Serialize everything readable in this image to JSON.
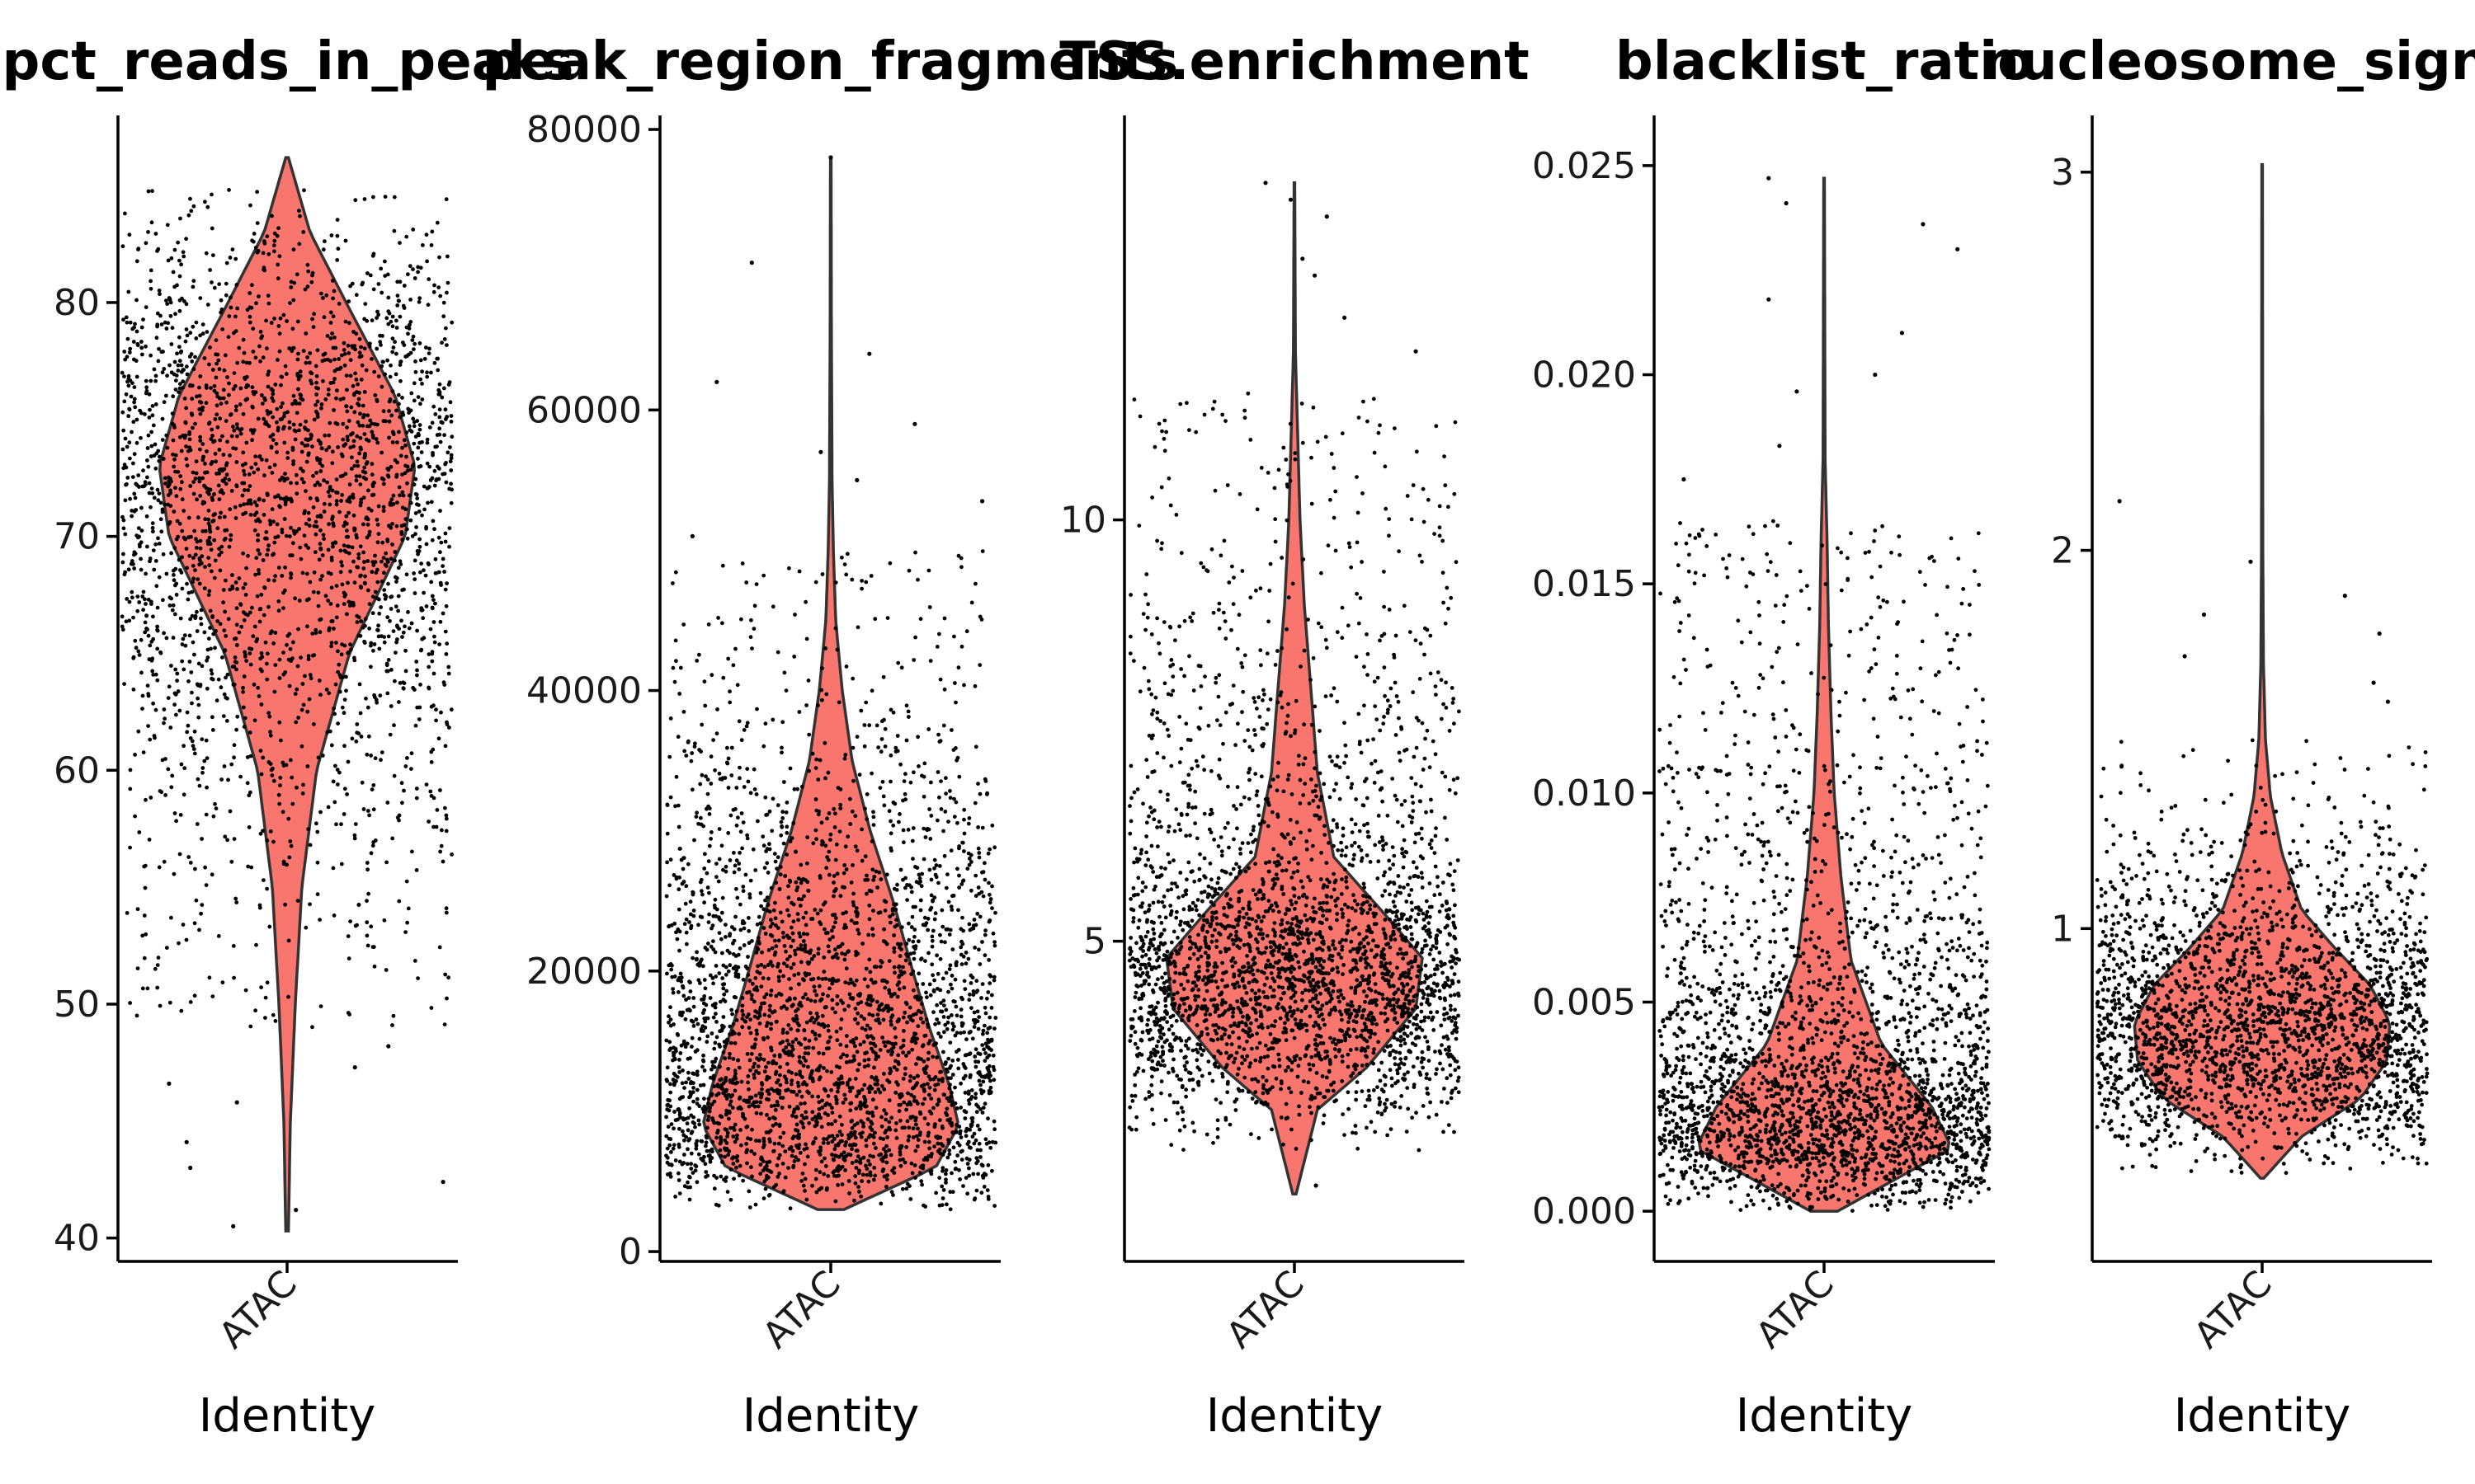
{
  "chart_data": [
    {
      "type": "violin",
      "title": "pct_reads_in_peaks",
      "xlabel": "Identity",
      "categories": [
        "ATAC"
      ],
      "ylim": [
        39,
        88
      ],
      "yticks": [
        40,
        50,
        60,
        70,
        80
      ],
      "fill": "#F8766D",
      "range": [
        40.3,
        86.2
      ],
      "density": [
        [
          40.3,
          0.004
        ],
        [
          45,
          0.01
        ],
        [
          50,
          0.025
        ],
        [
          55,
          0.045
        ],
        [
          60,
          0.09
        ],
        [
          65,
          0.19
        ],
        [
          70,
          0.36
        ],
        [
          73,
          0.39
        ],
        [
          76,
          0.33
        ],
        [
          80,
          0.18
        ],
        [
          83,
          0.07
        ],
        [
          86.2,
          0.004
        ]
      ],
      "n_points": 2600,
      "jitter_ys": [
        49,
        85
      ],
      "outliers": [
        40.5,
        41.2,
        42.4,
        43.0,
        44.1,
        45.8,
        46.6,
        47.3,
        48.2
      ]
    },
    {
      "type": "violin",
      "title": "peak_region_fragments",
      "xlabel": "Identity",
      "categories": [
        "ATAC"
      ],
      "ylim": [
        -700,
        81000
      ],
      "yticks": [
        0,
        20000,
        40000,
        60000,
        80000
      ],
      "fill": "#F8766D",
      "range": [
        3000,
        78000
      ],
      "density": [
        [
          3000,
          0.04
        ],
        [
          6000,
          0.32
        ],
        [
          9000,
          0.39
        ],
        [
          12000,
          0.36
        ],
        [
          16000,
          0.3
        ],
        [
          20000,
          0.25
        ],
        [
          25000,
          0.19
        ],
        [
          30000,
          0.12
        ],
        [
          35000,
          0.065
        ],
        [
          40000,
          0.035
        ],
        [
          45000,
          0.015
        ],
        [
          50000,
          0.008
        ],
        [
          55000,
          0.004
        ],
        [
          65000,
          0.002
        ],
        [
          78000,
          0.001
        ]
      ],
      "n_points": 3000,
      "jitter_ys": [
        3000,
        50000
      ],
      "outliers": [
        51000,
        53500,
        55000,
        57000,
        59000,
        62000,
        64000,
        70500,
        78000
      ]
    },
    {
      "type": "violin",
      "title": "TSS.enrichment",
      "xlabel": "Identity",
      "categories": [
        "ATAC"
      ],
      "ylim": [
        1.2,
        14.8
      ],
      "yticks": [
        5,
        10
      ],
      "fill": "#F8766D",
      "range": [
        2.0,
        14.0
      ],
      "density": [
        [
          2.0,
          0.005
        ],
        [
          3.0,
          0.07
        ],
        [
          3.5,
          0.22
        ],
        [
          4.2,
          0.37
        ],
        [
          4.8,
          0.39
        ],
        [
          5.3,
          0.28
        ],
        [
          6.0,
          0.12
        ],
        [
          7,
          0.07
        ],
        [
          8,
          0.05
        ],
        [
          9,
          0.03
        ],
        [
          10,
          0.017
        ],
        [
          11,
          0.01
        ],
        [
          12,
          0.003
        ],
        [
          14,
          0.001
        ]
      ],
      "n_points": 3000,
      "jitter_ys": [
        2.5,
        11.5
      ],
      "outliers": [
        2.1,
        12.0,
        12.4,
        12.9,
        13.1,
        13.6,
        13.8,
        14.0
      ]
    },
    {
      "type": "violin",
      "title": "blacklist_ratio",
      "xlabel": "Identity",
      "categories": [
        "ATAC"
      ],
      "ylim": [
        -0.0012,
        0.0262
      ],
      "yticks": [
        0.0,
        0.005,
        0.01,
        0.015,
        0.02,
        0.025
      ],
      "fill": "#F8766D",
      "range": [
        0.0,
        0.0247
      ],
      "density": [
        [
          0.0,
          0.04
        ],
        [
          0.0008,
          0.22
        ],
        [
          0.0015,
          0.38
        ],
        [
          0.0025,
          0.32
        ],
        [
          0.004,
          0.17
        ],
        [
          0.006,
          0.08
        ],
        [
          0.008,
          0.05
        ],
        [
          0.01,
          0.03
        ],
        [
          0.012,
          0.02
        ],
        [
          0.014,
          0.013
        ],
        [
          0.016,
          0.009
        ],
        [
          0.018,
          0.003
        ],
        [
          0.0247,
          0.001
        ]
      ],
      "n_points": 2800,
      "jitter_ys": [
        0.0,
        0.0165
      ],
      "outliers": [
        0.0175,
        0.0183,
        0.0196,
        0.02,
        0.021,
        0.0218,
        0.023,
        0.0236,
        0.0241,
        0.0247
      ]
    },
    {
      "type": "violin",
      "title": "nucleosome_signal",
      "xlabel": "Identity",
      "categories": [
        "ATAC"
      ],
      "ylim": [
        0.12,
        3.15
      ],
      "yticks": [
        1,
        2,
        3
      ],
      "fill": "#F8766D",
      "range": [
        0.34,
        3.02
      ],
      "density": [
        [
          0.34,
          0.005
        ],
        [
          0.45,
          0.12
        ],
        [
          0.55,
          0.3
        ],
        [
          0.65,
          0.38
        ],
        [
          0.75,
          0.39
        ],
        [
          0.85,
          0.33
        ],
        [
          0.95,
          0.22
        ],
        [
          1.05,
          0.12
        ],
        [
          1.2,
          0.06
        ],
        [
          1.35,
          0.025
        ],
        [
          1.5,
          0.01
        ],
        [
          1.7,
          0.004
        ],
        [
          2.0,
          0.002
        ],
        [
          3.02,
          0.001
        ]
      ],
      "n_points": 2500,
      "jitter_ys": [
        0.35,
        1.5
      ],
      "outliers": [
        1.6,
        1.65,
        1.72,
        1.78,
        1.83,
        1.88,
        1.97,
        2.13
      ]
    }
  ]
}
